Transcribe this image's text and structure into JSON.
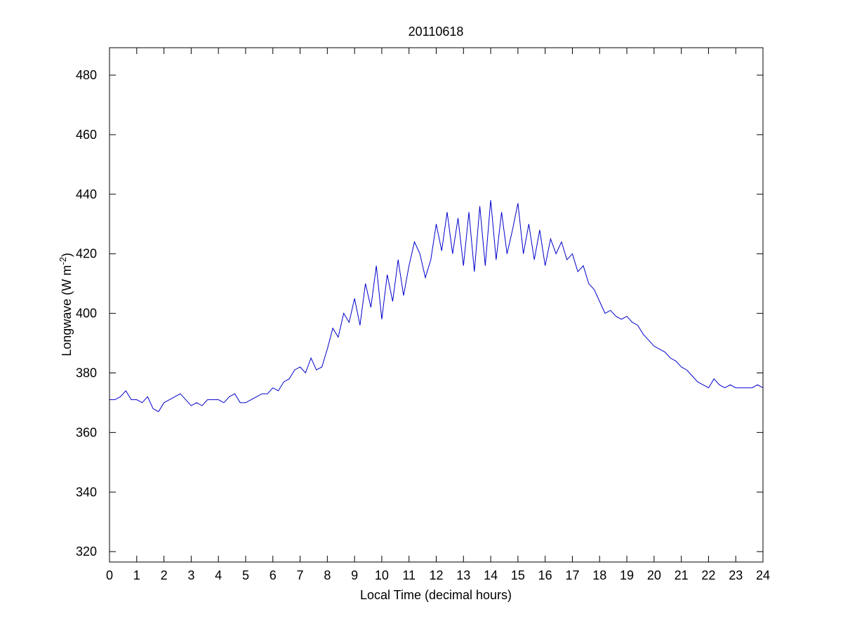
{
  "chart_data": {
    "type": "line",
    "title": "20110618",
    "xlabel": "Local Time (decimal hours)",
    "ylabel": {
      "text": "Longwave (W m",
      "sup": "-2",
      "end": ")"
    },
    "xlim": [
      0,
      24
    ],
    "ylim": [
      316.5,
      489.2
    ],
    "xticks": [
      0,
      1,
      2,
      3,
      4,
      5,
      6,
      7,
      8,
      9,
      10,
      11,
      12,
      13,
      14,
      15,
      16,
      17,
      18,
      19,
      20,
      21,
      22,
      23,
      24
    ],
    "yticks": [
      320,
      340,
      360,
      380,
      400,
      420,
      440,
      460,
      480
    ],
    "grid": false,
    "series": [
      {
        "color": "#0000cc",
        "x": [
          0,
          0.2,
          0.4,
          0.6,
          0.8,
          1,
          1.2,
          1.4,
          1.6,
          1.8,
          2,
          2.2,
          2.4,
          2.6,
          2.8,
          3,
          3.2,
          3.4,
          3.6,
          3.8,
          4,
          4.2,
          4.4,
          4.6,
          4.8,
          5,
          5.2,
          5.4,
          5.6,
          5.8,
          6,
          6.2,
          6.4,
          6.6,
          6.8,
          7,
          7.2,
          7.4,
          7.6,
          7.8,
          8,
          8.2,
          8.4,
          8.6,
          8.8,
          9,
          9.2,
          9.4,
          9.6,
          9.8,
          10,
          10.2,
          10.4,
          10.6,
          10.8,
          11,
          11.2,
          11.4,
          11.6,
          11.8,
          12,
          12.2,
          12.4,
          12.6,
          12.8,
          13,
          13.2,
          13.4,
          13.6,
          13.8,
          14,
          14.2,
          14.4,
          14.6,
          14.8,
          15,
          15.2,
          15.4,
          15.6,
          15.8,
          16,
          16.2,
          16.4,
          16.6,
          16.8,
          17,
          17.2,
          17.4,
          17.6,
          17.8,
          18,
          18.2,
          18.4,
          18.6,
          18.8,
          19,
          19.2,
          19.4,
          19.6,
          19.8,
          20,
          20.2,
          20.4,
          20.6,
          20.8,
          21,
          21.2,
          21.4,
          21.6,
          21.8,
          22,
          22.2,
          22.4,
          22.6,
          22.8,
          23,
          23.2,
          23.4,
          23.6,
          23.8,
          24
        ],
        "values": [
          371,
          371,
          372,
          374,
          371,
          371,
          370,
          372,
          368,
          367,
          370,
          371,
          372,
          373,
          371,
          369,
          370,
          369,
          371,
          371,
          371,
          370,
          372,
          373,
          370,
          370,
          371,
          372,
          373,
          373,
          375,
          374,
          377,
          378,
          381,
          382,
          380,
          385,
          381,
          382,
          388,
          395,
          392,
          400,
          397,
          405,
          396,
          410,
          402,
          416,
          398,
          413,
          404,
          418,
          406,
          416,
          424,
          420,
          412,
          418,
          430,
          421,
          434,
          420,
          432,
          416,
          434,
          414,
          436,
          416,
          438,
          418,
          434,
          420,
          428,
          437,
          420,
          430,
          418,
          428,
          416,
          425,
          420,
          424,
          418,
          420,
          414,
          416,
          410,
          408,
          404,
          400,
          401,
          399,
          398,
          399,
          397,
          396,
          393,
          391,
          389,
          388,
          387,
          385,
          384,
          382,
          381,
          379,
          377,
          376,
          375,
          378,
          376,
          375,
          376,
          375,
          375,
          375,
          375,
          376,
          375
        ]
      }
    ]
  }
}
